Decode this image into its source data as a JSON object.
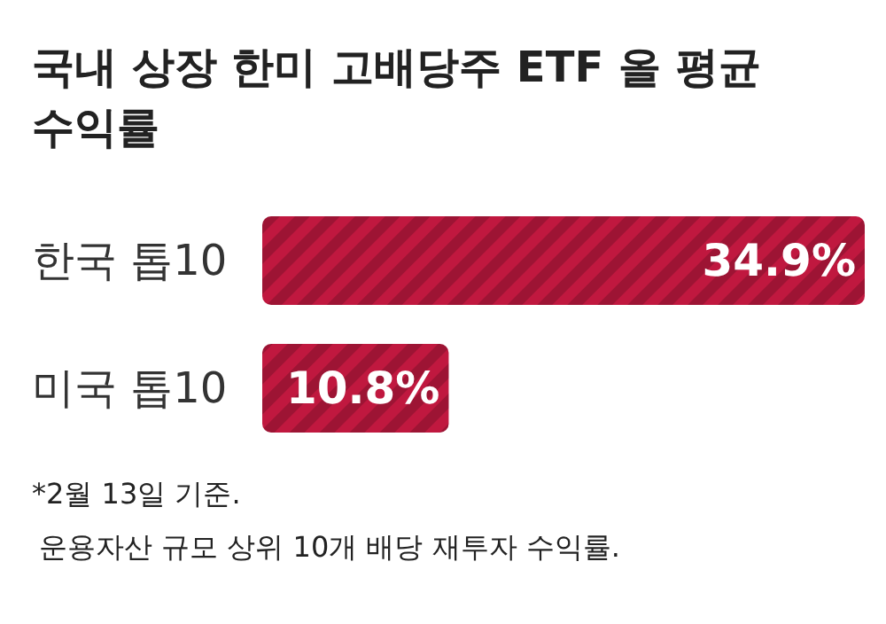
{
  "chart_data": {
    "type": "bar",
    "orientation": "horizontal",
    "title": "국내 상장 한미 고배당주 ETF 올 평균 수익률",
    "categories": [
      "한국 톱10",
      "미국 톱10"
    ],
    "values": [
      34.9,
      10.8
    ],
    "value_labels": [
      "34.9%",
      "10.8%"
    ],
    "color": "#c0183f",
    "annotations": [
      "*2월 13일 기준.",
      "운용자산 규모 상위 10개 배당 재투자 수익률."
    ]
  }
}
